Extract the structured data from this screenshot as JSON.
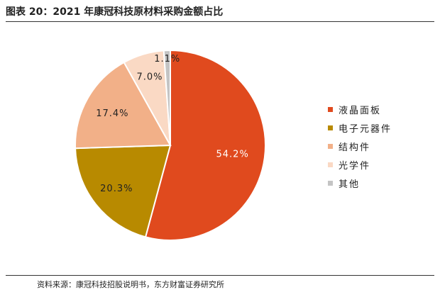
{
  "title": "图表 20：2021 年康冠科技原材料采购金额占比",
  "source": "资料来源：康冠科技招股说明书，东方财富证券研究所",
  "chart_data": {
    "type": "pie",
    "title": "图表 20：2021 年康冠科技原材料采购金额占比",
    "slices": [
      {
        "name": "液晶面板",
        "value": 54.2,
        "label": "54.2%",
        "color": "#e04a1e"
      },
      {
        "name": "电子元器件",
        "value": 20.3,
        "label": "20.3%",
        "color": "#b88a00"
      },
      {
        "name": "结构件",
        "value": 17.4,
        "label": "17.4%",
        "color": "#f2b088"
      },
      {
        "name": "光学件",
        "value": 7.0,
        "label": "7.0%",
        "color": "#fad9c4"
      },
      {
        "name": "其他",
        "value": 1.1,
        "label": "1.1%",
        "color": "#c4c4c4"
      }
    ],
    "legend_position": "right",
    "start": "top, clockwise"
  }
}
